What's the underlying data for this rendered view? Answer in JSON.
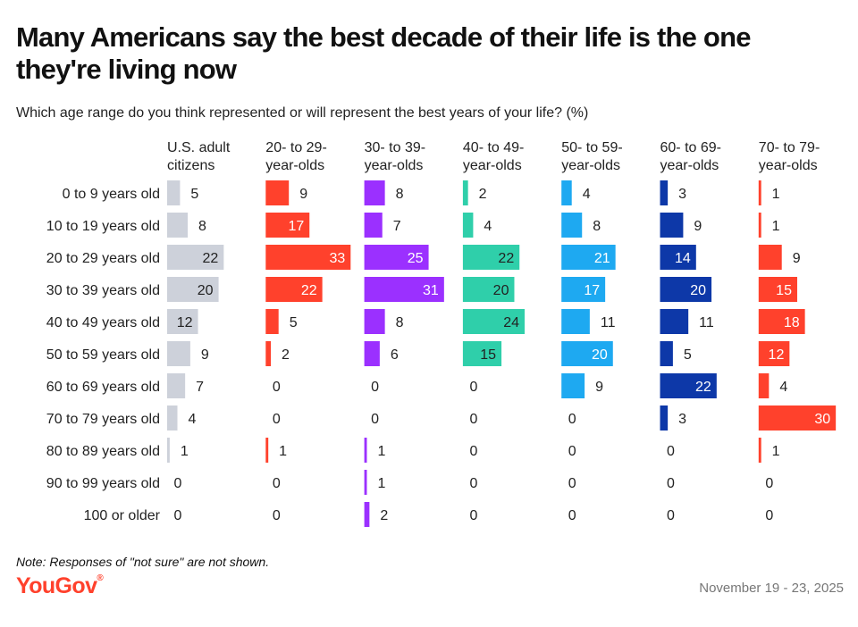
{
  "title": "Many Americans say the best decade of their life is the one they're living now",
  "subtitle": "Which age range do you think represented or will represent the best years of your life? (%)",
  "note": "Note: Responses of \"not sure\" are not shown.",
  "logo": "YouGov",
  "logo_mark": "®",
  "date": "November 19 - 23, 2025",
  "chart_data": {
    "type": "bar",
    "orientation": "horizontal small multiples",
    "unit": "%",
    "categories": [
      "0 to 9 years old",
      "10 to 19 years old",
      "20 to 29 years old",
      "30 to 39 years old",
      "40 to 49 years old",
      "50 to 59 years old",
      "60 to 69 years old",
      "70 to 79 years old",
      "80 to 89 years old",
      "90 to 99 years old",
      "100 or older"
    ],
    "series": [
      {
        "name": "U.S. adult citizens",
        "header": [
          "U.S. adult",
          "citizens"
        ],
        "color": "#cdd1da",
        "values": [
          5,
          8,
          22,
          20,
          12,
          9,
          7,
          4,
          1,
          0,
          0
        ]
      },
      {
        "name": "20- to 29-year-olds",
        "header": [
          "20- to 29-",
          "year-olds"
        ],
        "color": "#ff412c",
        "values": [
          9,
          17,
          33,
          22,
          5,
          2,
          0,
          0,
          1,
          0,
          0
        ]
      },
      {
        "name": "30- to 39-year-olds",
        "header": [
          "30- to 39-",
          "year-olds"
        ],
        "color": "#9b30ff",
        "values": [
          8,
          7,
          25,
          31,
          8,
          6,
          0,
          0,
          1,
          1,
          2
        ]
      },
      {
        "name": "40- to 49-year-olds",
        "header": [
          "40- to 49-",
          "year-olds"
        ],
        "color": "#2fcfaa",
        "values": [
          2,
          4,
          22,
          20,
          24,
          15,
          0,
          0,
          0,
          0,
          0
        ]
      },
      {
        "name": "50- to 59-year-olds",
        "header": [
          "50- to 59-",
          "year-olds"
        ],
        "color": "#1ea9f1",
        "values": [
          4,
          8,
          21,
          17,
          11,
          20,
          9,
          0,
          0,
          0,
          0
        ]
      },
      {
        "name": "60- to 69-year-olds",
        "header": [
          "60- to 69-",
          "year-olds"
        ],
        "color": "#0d38a8",
        "values": [
          3,
          9,
          14,
          20,
          11,
          5,
          22,
          3,
          0,
          0,
          0
        ]
      },
      {
        "name": "70- to 79-year-olds",
        "header": [
          "70- to 79-",
          "year-olds"
        ],
        "color": "#ff412c",
        "values": [
          1,
          1,
          9,
          15,
          18,
          12,
          4,
          30,
          1,
          0,
          0
        ]
      }
    ],
    "xlim": [
      0,
      33
    ],
    "data_labels": true,
    "grid": false,
    "legend": "none"
  }
}
